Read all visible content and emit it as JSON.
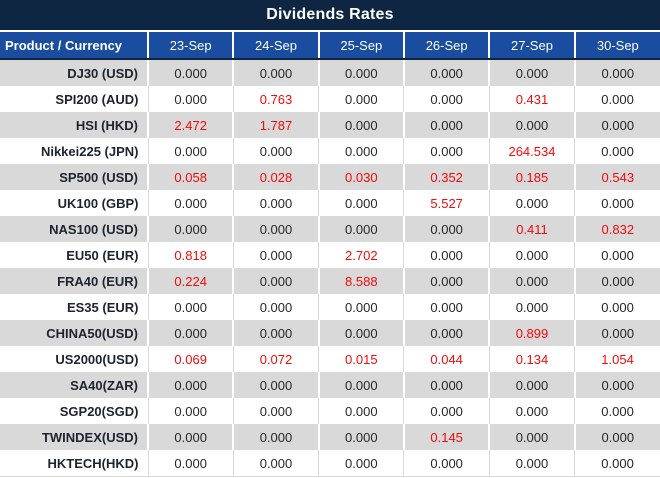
{
  "title": "Dividends Rates",
  "colors": {
    "title_bar_bg": "#0e2642",
    "header_bg": "#1a4da0",
    "band_gray": "#d9d9d9",
    "row_white": "#ffffff",
    "value_text": "#272727",
    "product_text": "#1c2430",
    "nonzero_value_red": "#f20b0b"
  },
  "table": {
    "header": [
      "Product / Currency",
      "23-Sep",
      "24-Sep",
      "25-Sep",
      "26-Sep",
      "27-Sep",
      "30-Sep"
    ],
    "rows": [
      {
        "product": "DJ30 (USD)",
        "values": [
          "0.000",
          "0.000",
          "0.000",
          "0.000",
          "0.000",
          "0.000"
        ],
        "red": [
          false,
          false,
          false,
          false,
          false,
          false
        ]
      },
      {
        "product": "SPI200 (AUD)",
        "values": [
          "0.000",
          "0.763",
          "0.000",
          "0.000",
          "0.431",
          "0.000"
        ],
        "red": [
          false,
          true,
          false,
          false,
          true,
          false
        ]
      },
      {
        "product": "HSI (HKD)",
        "values": [
          "2.472",
          "1.787",
          "0.000",
          "0.000",
          "0.000",
          "0.000"
        ],
        "red": [
          true,
          true,
          false,
          false,
          false,
          false
        ]
      },
      {
        "product": "Nikkei225 (JPN)",
        "values": [
          "0.000",
          "0.000",
          "0.000",
          "0.000",
          "264.534",
          "0.000"
        ],
        "red": [
          false,
          false,
          false,
          false,
          true,
          false
        ]
      },
      {
        "product": "SP500 (USD)",
        "values": [
          "0.058",
          "0.028",
          "0.030",
          "0.352",
          "0.185",
          "0.543"
        ],
        "red": [
          true,
          true,
          true,
          true,
          true,
          true
        ]
      },
      {
        "product": "UK100 (GBP)",
        "values": [
          "0.000",
          "0.000",
          "0.000",
          "5.527",
          "0.000",
          "0.000"
        ],
        "red": [
          false,
          false,
          false,
          true,
          false,
          false
        ]
      },
      {
        "product": "NAS100 (USD)",
        "values": [
          "0.000",
          "0.000",
          "0.000",
          "0.000",
          "0.411",
          "0.832"
        ],
        "red": [
          false,
          false,
          false,
          false,
          true,
          true
        ]
      },
      {
        "product": "EU50 (EUR)",
        "values": [
          "0.818",
          "0.000",
          "2.702",
          "0.000",
          "0.000",
          "0.000"
        ],
        "red": [
          true,
          false,
          true,
          false,
          false,
          false
        ]
      },
      {
        "product": "FRA40 (EUR)",
        "values": [
          "0.224",
          "0.000",
          "8.588",
          "0.000",
          "0.000",
          "0.000"
        ],
        "red": [
          true,
          false,
          true,
          false,
          false,
          false
        ]
      },
      {
        "product": "ES35 (EUR)",
        "values": [
          "0.000",
          "0.000",
          "0.000",
          "0.000",
          "0.000",
          "0.000"
        ],
        "red": [
          false,
          false,
          false,
          false,
          false,
          false
        ]
      },
      {
        "product": "CHINA50(USD)",
        "values": [
          "0.000",
          "0.000",
          "0.000",
          "0.000",
          "0.899",
          "0.000"
        ],
        "red": [
          false,
          false,
          false,
          false,
          true,
          false
        ]
      },
      {
        "product": "US2000(USD)",
        "values": [
          "0.069",
          "0.072",
          "0.015",
          "0.044",
          "0.134",
          "1.054"
        ],
        "red": [
          true,
          true,
          true,
          true,
          true,
          true
        ]
      },
      {
        "product": "SA40(ZAR)",
        "values": [
          "0.000",
          "0.000",
          "0.000",
          "0.000",
          "0.000",
          "0.000"
        ],
        "red": [
          false,
          false,
          false,
          false,
          false,
          false
        ]
      },
      {
        "product": "SGP20(SGD)",
        "values": [
          "0.000",
          "0.000",
          "0.000",
          "0.000",
          "0.000",
          "0.000"
        ],
        "red": [
          false,
          false,
          false,
          false,
          false,
          false
        ]
      },
      {
        "product": "TWINDEX(USD)",
        "values": [
          "0.000",
          "0.000",
          "0.000",
          "0.145",
          "0.000",
          "0.000"
        ],
        "red": [
          false,
          false,
          false,
          true,
          false,
          false
        ]
      },
      {
        "product": "HKTECH(HKD)",
        "values": [
          "0.000",
          "0.000",
          "0.000",
          "0.000",
          "0.000",
          "0.000"
        ],
        "red": [
          false,
          false,
          false,
          false,
          false,
          false
        ]
      }
    ]
  }
}
